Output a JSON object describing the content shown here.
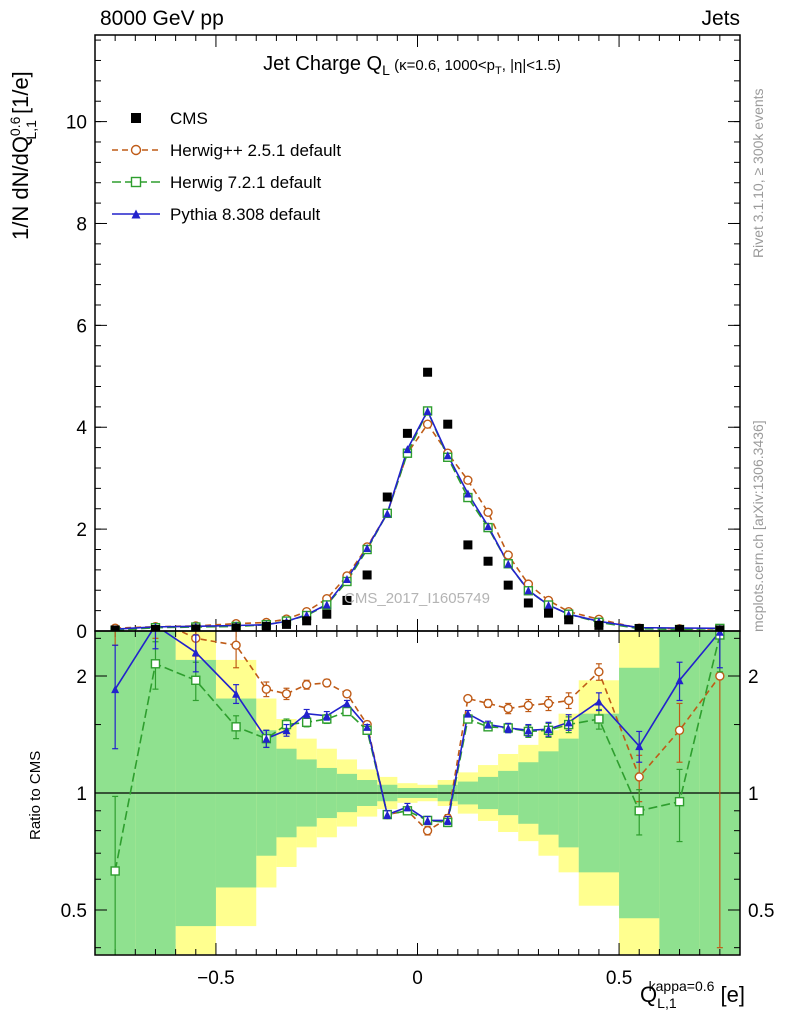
{
  "header": {
    "left": "8000 GeV pp",
    "right": "Jets"
  },
  "plot_title": {
    "main": "Jet Charge Q",
    "sub": "L",
    "paren": " (κ=0.6, 1000<p",
    "paren_sub": "T",
    "paren_end": ", |η|<1.5)"
  },
  "watermark": "CMS_2017_I1605749",
  "side_notes": {
    "top_right": "Rivet 3.1.10, ≥ 300k events",
    "bottom_right": "mcplots.cern.ch [arXiv:1306.3436]"
  },
  "axes": {
    "ylabel_parts": {
      "pre": "1/N dN/dQ",
      "sup": "0.6",
      "sub": "L,1",
      "post": " [1/e]"
    },
    "ratio_ylabel": "Ratio to CMS",
    "xlabel_parts": {
      "base": "Q",
      "sub": "L,1",
      "sup": "kappa=0.6",
      "post": " [e]"
    }
  },
  "chart_data": {
    "type": "line",
    "title": "Jet Charge QL (kappa=0.6, 1000<pT, |eta|<1.5)",
    "legend_position": "top-left",
    "x": {
      "label": "QL,1 kappa=0.6 [e]",
      "lim": [
        -0.8,
        0.8
      ],
      "major_ticks": [
        -0.5,
        0,
        0.5
      ],
      "minor_step": 0.05,
      "bin_edges": [
        -0.8,
        -0.7,
        -0.6,
        -0.5,
        -0.4,
        -0.35,
        -0.3,
        -0.25,
        -0.2,
        -0.15,
        -0.1,
        -0.05,
        0,
        0.05,
        0.1,
        0.15,
        0.2,
        0.25,
        0.3,
        0.35,
        0.4,
        0.5,
        0.6,
        0.7,
        0.8
      ]
    },
    "bin_centers": [
      -0.75,
      -0.65,
      -0.55,
      -0.45,
      -0.375,
      -0.325,
      -0.275,
      -0.225,
      -0.175,
      -0.125,
      -0.075,
      -0.025,
      0.025,
      0.075,
      0.125,
      0.175,
      0.225,
      0.275,
      0.325,
      0.375,
      0.45,
      0.55,
      0.65,
      0.75
    ],
    "top_panel": {
      "ylabel": "1/N dN/dQ^0.6_L,1 [1/e]",
      "ylim": [
        0,
        11.7
      ],
      "major_ticks": [
        0,
        2,
        4,
        6,
        8,
        10
      ],
      "minor_step": 0.4
    },
    "bottom_panel": {
      "ylabel": "Ratio to CMS",
      "scale": "log",
      "ylim": [
        0.383,
        2.611
      ],
      "major_ticks": [
        0.5,
        1,
        2
      ],
      "minor_ticks": [
        0.4,
        0.6,
        0.7,
        0.8,
        0.9,
        1.5,
        2.5
      ],
      "ref_line": 1,
      "bands": {
        "yellow_color": "#ffff8f",
        "green_color": "#8fe18f",
        "yellow_factor": [
          2.6,
          2.6,
          2.6,
          2.2,
          1.75,
          1.55,
          1.38,
          1.3,
          1.22,
          1.15,
          1.1,
          1.06,
          1.05,
          1.08,
          1.13,
          1.18,
          1.26,
          1.33,
          1.45,
          1.6,
          1.95,
          2.6,
          2.6,
          2.6
        ],
        "green_factor": [
          2.6,
          2.6,
          2.2,
          1.75,
          1.45,
          1.3,
          1.22,
          1.16,
          1.12,
          1.08,
          1.05,
          1.03,
          1.03,
          1.05,
          1.07,
          1.1,
          1.14,
          1.2,
          1.28,
          1.38,
          1.6,
          2.1,
          2.6,
          2.6
        ]
      }
    },
    "series": [
      {
        "id": "cms",
        "label": "CMS",
        "color": "#000000",
        "marker": "square-filled",
        "line": "none",
        "values": [
          0.02,
          0.03,
          0.04,
          0.06,
          0.09,
          0.13,
          0.2,
          0.33,
          0.6,
          1.1,
          2.63,
          3.88,
          5.08,
          4.06,
          1.69,
          1.37,
          0.9,
          0.55,
          0.35,
          0.22,
          0.11,
          0.05,
          0.03,
          0.02
        ]
      },
      {
        "id": "herwigpp",
        "label": "Herwig++ 2.5.1 default",
        "color": "#bf5b17",
        "marker": "circle-open",
        "line": "dashed",
        "values": [
          0.056,
          0.084,
          0.1,
          0.144,
          0.167,
          0.234,
          0.38,
          0.634,
          1.08,
          1.65,
          2.31,
          3.49,
          4.06,
          3.49,
          2.96,
          2.33,
          1.49,
          0.92,
          0.6,
          0.38,
          0.23,
          0.055,
          0.044,
          0.04
        ],
        "ratio": [
          2.8,
          2.8,
          2.5,
          2.4,
          1.85,
          1.8,
          1.9,
          1.92,
          1.8,
          1.5,
          0.88,
          0.9,
          0.8,
          0.86,
          1.75,
          1.7,
          1.65,
          1.68,
          1.7,
          1.73,
          2.05,
          1.1,
          1.45,
          2.0
        ],
        "ratio_err": [
          0.4,
          0.3,
          0.25,
          0.3,
          0.08,
          0.06,
          0.05,
          0.04,
          0.03,
          0.03,
          0.02,
          0.02,
          0.02,
          0.02,
          0.03,
          0.04,
          0.05,
          0.06,
          0.07,
          0.08,
          0.1,
          0.15,
          0.25,
          1.6
        ]
      },
      {
        "id": "herwig7",
        "label": "Herwig 7.2.1 default",
        "color": "#2e9e2e",
        "marker": "square-open",
        "line": "dashed",
        "values": [
          0.013,
          0.065,
          0.078,
          0.089,
          0.124,
          0.195,
          0.304,
          0.512,
          0.972,
          1.6,
          2.31,
          3.49,
          4.32,
          3.41,
          2.62,
          2.03,
          1.32,
          0.79,
          0.51,
          0.33,
          0.17,
          0.045,
          0.029,
          0.051
        ],
        "ratio": [
          0.63,
          2.15,
          1.95,
          1.48,
          1.38,
          1.5,
          1.52,
          1.55,
          1.62,
          1.45,
          0.88,
          0.9,
          0.85,
          0.84,
          1.55,
          1.48,
          1.47,
          1.44,
          1.45,
          1.5,
          1.55,
          0.9,
          0.95,
          2.55
        ],
        "ratio_err": [
          0.35,
          0.3,
          0.22,
          0.1,
          0.07,
          0.05,
          0.04,
          0.04,
          0.03,
          0.02,
          0.02,
          0.02,
          0.02,
          0.02,
          0.03,
          0.03,
          0.04,
          0.05,
          0.06,
          0.07,
          0.09,
          0.12,
          0.2,
          0.5
        ]
      },
      {
        "id": "pythia8",
        "label": "Pythia 8.308 default",
        "color": "#2222cc",
        "marker": "triangle-filled",
        "line": "solid",
        "values": [
          0.037,
          0.081,
          0.092,
          0.108,
          0.124,
          0.189,
          0.32,
          0.521,
          1.02,
          1.63,
          2.31,
          3.57,
          4.32,
          3.45,
          2.7,
          2.06,
          1.32,
          0.8,
          0.51,
          0.33,
          0.19,
          0.066,
          0.059,
          0.052
        ],
        "ratio": [
          1.85,
          2.7,
          2.3,
          1.8,
          1.38,
          1.45,
          1.6,
          1.58,
          1.7,
          1.48,
          0.88,
          0.92,
          0.85,
          0.85,
          1.6,
          1.5,
          1.47,
          1.45,
          1.46,
          1.52,
          1.72,
          1.32,
          1.95,
          2.6
        ],
        "ratio_err": [
          0.55,
          0.35,
          0.25,
          0.1,
          0.07,
          0.05,
          0.04,
          0.04,
          0.03,
          0.02,
          0.02,
          0.02,
          0.02,
          0.02,
          0.03,
          0.03,
          0.04,
          0.05,
          0.06,
          0.07,
          0.09,
          0.12,
          0.22,
          0.5
        ]
      }
    ]
  }
}
